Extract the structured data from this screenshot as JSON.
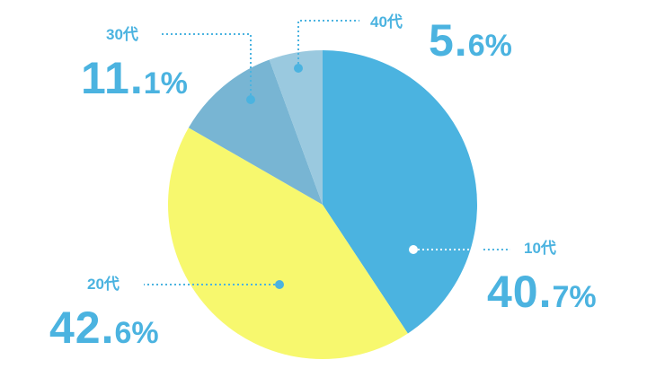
{
  "chart_data": {
    "type": "pie",
    "title": "",
    "slices": [
      {
        "label": "10代",
        "value": 40.7,
        "int": "40.",
        "dec": "7%",
        "color": "#4bb3e0"
      },
      {
        "label": "20代",
        "value": 42.6,
        "int": "42.",
        "dec": "6%",
        "color": "#f7f86e"
      },
      {
        "label": "30代",
        "value": 11.1,
        "int": "11.",
        "dec": "1%",
        "color": "#78b5d3"
      },
      {
        "label": "40代",
        "value": 5.6,
        "int": "5.",
        "dec": "6%",
        "color": "#9ac9df"
      }
    ],
    "label_color": "#4bb3e0",
    "start_angle": "12 o'clock",
    "direction": "clockwise",
    "legend": "none"
  }
}
